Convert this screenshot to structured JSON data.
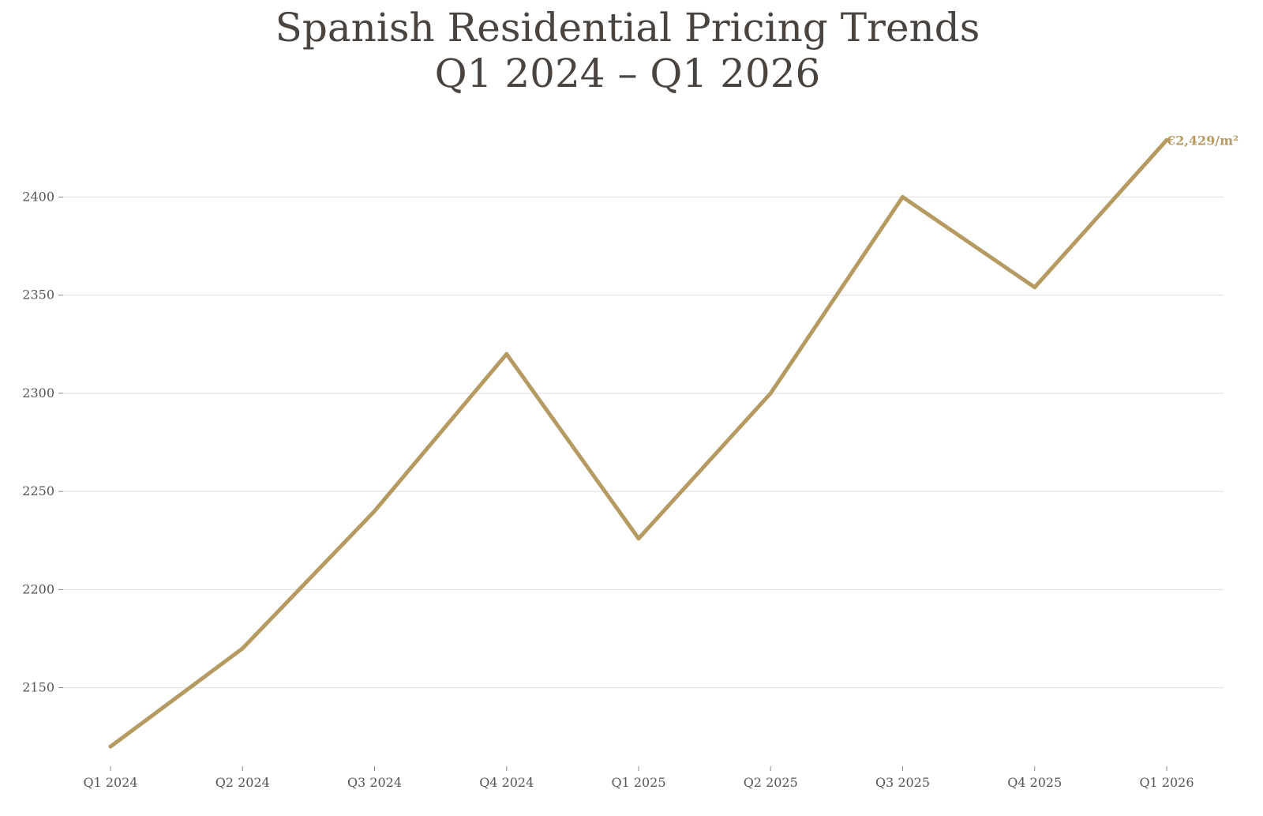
{
  "chart_data": {
    "type": "line",
    "title": "Spanish Residential Pricing Trends",
    "subtitle": "Q1 2024 – Q1 2026",
    "xlabel": "",
    "ylabel": "",
    "categories": [
      "Q1 2024",
      "Q2 2024",
      "Q3 2024",
      "Q4 2024",
      "Q1 2025",
      "Q2 2025",
      "Q3 2025",
      "Q4 2025",
      "Q1 2026"
    ],
    "series": [
      {
        "values": [
          2120,
          2170,
          2240,
          2320,
          2226,
          2300,
          2400,
          2354,
          2429
        ],
        "color": "#b59a62"
      }
    ],
    "yticks": [
      2150,
      2200,
      2250,
      2300,
      2350,
      2400
    ],
    "ylim": [
      2110,
      2440
    ],
    "grid": "horizontal",
    "legend": "none",
    "end_annotation": "€2,429/m²",
    "colors": {
      "line": "#b59a62",
      "grid": "#e3e3e3",
      "title": "#4a4440",
      "tick_text": "#555555"
    }
  }
}
